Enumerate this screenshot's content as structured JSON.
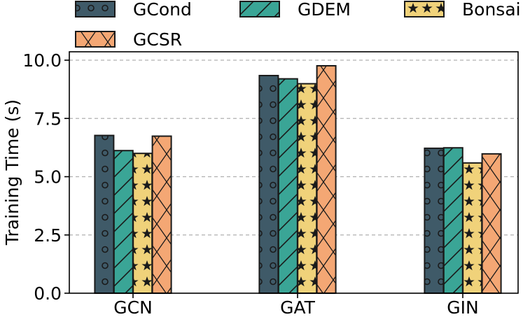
{
  "chart_data": {
    "type": "bar",
    "categories": [
      "GCN",
      "GAT",
      "GIN"
    ],
    "ylabel": "Training Time (s)",
    "xlabel": "",
    "ylim": [
      0,
      10
    ],
    "yticks": [
      "0.0",
      "2.5",
      "5.0",
      "7.5",
      "10.0"
    ],
    "grid": "horizontal dashed",
    "legend_position": "top",
    "series": [
      {
        "name": "GCond",
        "values": [
          6.77,
          9.34,
          6.22
        ],
        "color": "#3f5a68",
        "pattern": "circles"
      },
      {
        "name": "GDEM",
        "values": [
          6.12,
          9.2,
          6.24
        ],
        "color": "#3aa596",
        "pattern": "diagonal-lines"
      },
      {
        "name": "Bonsai",
        "values": [
          6.0,
          8.99,
          5.59
        ],
        "color": "#f0d27a",
        "pattern": "stars"
      },
      {
        "name": "GCSR",
        "values": [
          6.74,
          9.76,
          5.98
        ],
        "color": "#f4a774",
        "pattern": "cross-hatch"
      }
    ]
  }
}
